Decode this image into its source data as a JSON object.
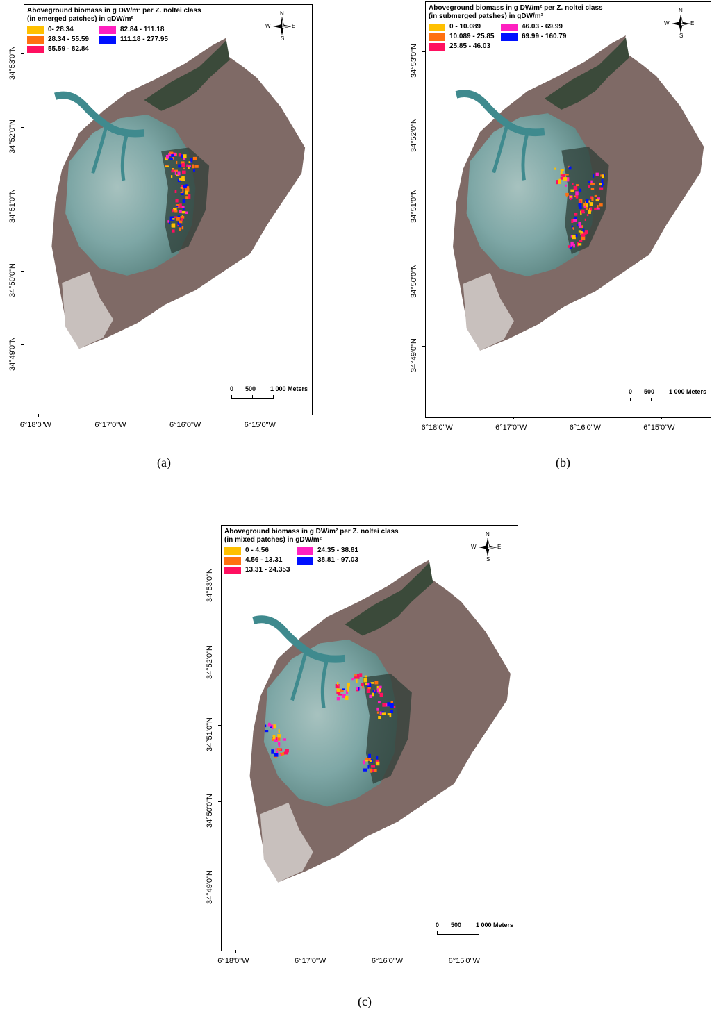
{
  "panels": [
    {
      "caption": "(a)",
      "legend": {
        "title_line1": "Aboveground biomass in g DW/m² per Z. noltei class",
        "title_line2": "(in emerged patches) in gDW/m²",
        "classes": [
          {
            "label": "0- 28.34",
            "color": "#ffc000"
          },
          {
            "label": "28.34 - 55.59",
            "color": "#ff7010"
          },
          {
            "label": "55.59 - 82.84",
            "color": "#ff1060"
          },
          {
            "label": "82.84 - 111.18",
            "color": "#ff20c0"
          },
          {
            "label": "111.18 - 277.95",
            "color": "#0010ff"
          }
        ]
      },
      "lat_labels": [
        "34°53'0\"N",
        "34°52'0\"N",
        "34°51'0\"N",
        "34°50'0\"N",
        "34°49'0\"N"
      ],
      "lon_labels": [
        "6°18'0\"W",
        "6°17'0\"W",
        "6°16'0\"W",
        "6°15'0\"W"
      ],
      "scale": {
        "l0": "0",
        "l1": "500",
        "l2": "1 000 Meters"
      },
      "compass": {
        "n": "N",
        "s": "S",
        "e": "E",
        "w": "W"
      }
    },
    {
      "caption": "(b)",
      "legend": {
        "title_line1": "Aboveground biomass in g DW/m² per Z. noltei class",
        "title_line2": "(in submerged patshes) in gDW/m²",
        "classes": [
          {
            "label": "0 - 10.089",
            "color": "#ffc000"
          },
          {
            "label": "10.089 - 25.85",
            "color": "#ff7010"
          },
          {
            "label": "25.85 - 46.03",
            "color": "#ff1060"
          },
          {
            "label": "46.03 - 69.99",
            "color": "#ff20c0"
          },
          {
            "label": "69.99 - 160.79",
            "color": "#0010ff"
          }
        ]
      },
      "lat_labels": [
        "34°53'0\"N",
        "34°52'0\"N",
        "34°51'0\"N",
        "34°50'0\"N",
        "34°49'0\"N"
      ],
      "lon_labels": [
        "6°18'0\"W",
        "6°17'0\"W",
        "6°16'0\"W",
        "6°15'0\"W"
      ],
      "scale": {
        "l0": "0",
        "l1": "500",
        "l2": "1 000 Meters"
      },
      "compass": {
        "n": "N",
        "s": "S",
        "e": "E",
        "w": "W"
      }
    },
    {
      "caption": "(c)",
      "legend": {
        "title_line1": "Aboveground biomass in g DW/m² per Z. noltei class",
        "title_line2": "(in mixed patches) in gDW/m²",
        "classes": [
          {
            "label": "0 - 4.56",
            "color": "#ffc000"
          },
          {
            "label": "4.56 - 13.31",
            "color": "#ff7010"
          },
          {
            "label": "13.31 - 24.353",
            "color": "#ff1060"
          },
          {
            "label": "24.35 - 38.81",
            "color": "#ff20c0"
          },
          {
            "label": "38.81 - 97.03",
            "color": "#0010ff"
          }
        ]
      },
      "lat_labels": [
        "34°53'0\"N",
        "34°52'0\"N",
        "34°51'0\"N",
        "34°50'0\"N",
        "34°49'0\"N"
      ],
      "lon_labels": [
        "6°18'0\"W",
        "6°17'0\"W",
        "6°16'0\"W",
        "6°15'0\"W"
      ],
      "scale": {
        "l0": "0",
        "l1": "500",
        "l2": "1 000 Meters"
      },
      "compass": {
        "n": "N",
        "s": "S",
        "e": "E",
        "w": "W"
      }
    }
  ]
}
